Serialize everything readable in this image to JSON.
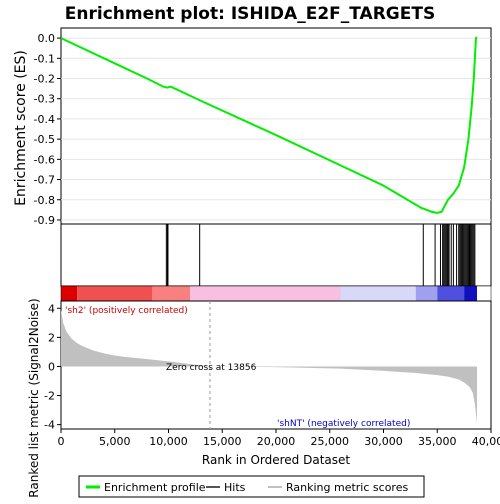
{
  "chart_data": {
    "type": "line",
    "title": "Enrichment plot: ISHIDA_E2F_TARGETS",
    "top_panel": {
      "ylabel": "Enrichment score (ES)",
      "ylim": [
        -0.9,
        0.0
      ],
      "yticks": [
        "0.0",
        "-0.1",
        "-0.2",
        "-0.3",
        "-0.4",
        "-0.5",
        "-0.6",
        "-0.7",
        "-0.8",
        "-0.9"
      ],
      "series": [
        {
          "name": "Enrichment profile",
          "color": "#00ee00",
          "x": [
            0,
            4000,
            8000,
            9500,
            9900,
            10200,
            13000,
            20000,
            26000,
            30000,
            33500,
            34000,
            34500,
            35000,
            35400,
            35700,
            36000,
            36500,
            37000,
            37500,
            37900,
            38200,
            38400,
            38500,
            38600,
            38700
          ],
          "y": [
            0.0,
            -0.1,
            -0.2,
            -0.24,
            -0.245,
            -0.24,
            -0.31,
            -0.48,
            -0.63,
            -0.73,
            -0.84,
            -0.85,
            -0.86,
            -0.865,
            -0.86,
            -0.83,
            -0.8,
            -0.77,
            -0.73,
            -0.64,
            -0.5,
            -0.34,
            -0.2,
            -0.1,
            0.0,
            0.005
          ]
        }
      ]
    },
    "hits": {
      "name": "Hits",
      "x": [
        9800,
        9900,
        9950,
        12900,
        33700,
        34800,
        35300,
        35500,
        35600,
        35700,
        35800,
        35900,
        36000,
        36100,
        36300,
        36500,
        36800,
        37000,
        37100,
        37200,
        37300,
        37400,
        37500,
        37600,
        37700,
        37800,
        37900,
        38000,
        38100,
        38200,
        38300,
        38400,
        38500
      ]
    },
    "ranking_panel": {
      "ylabel": "Ranked list metric (Signal2Noise)",
      "ylim": [
        -4,
        4
      ],
      "yticks": [
        "4",
        "2",
        "0",
        "-2",
        "-4"
      ],
      "xlabel": "Rank in Ordered Dataset",
      "xlim": [
        0,
        40000
      ],
      "xticks": [
        "0",
        "5,000",
        "10,000",
        "15,000",
        "20,000",
        "25,000",
        "30,000",
        "35,000",
        "40,000"
      ],
      "zero_cross_label": "Zero cross at 13856",
      "zero_cross": 13856,
      "positive_label": "'sh2' (positively correlated)",
      "negative_label": "'shNT' (negatively correlated)",
      "metric_x": [
        0,
        200,
        500,
        1000,
        1500,
        2000,
        3000,
        4000,
        5000,
        6000,
        8000,
        10000,
        13856,
        20000,
        26000,
        30000,
        33000,
        35000,
        36000,
        37000,
        37500,
        38000,
        38300,
        38500,
        38700
      ],
      "metric_y": [
        3.9,
        3.0,
        2.4,
        1.9,
        1.6,
        1.4,
        1.1,
        0.9,
        0.75,
        0.65,
        0.5,
        0.35,
        0.0,
        -0.05,
        -0.15,
        -0.3,
        -0.45,
        -0.6,
        -0.7,
        -0.9,
        -1.1,
        -1.4,
        -1.8,
        -2.6,
        -3.9
      ]
    },
    "legend": [
      {
        "label": "Enrichment profile",
        "color": "#00ee00"
      },
      {
        "label": "Hits",
        "color": "#555555"
      },
      {
        "label": "Ranking metric scores",
        "color": "#c0c0c0"
      }
    ]
  }
}
